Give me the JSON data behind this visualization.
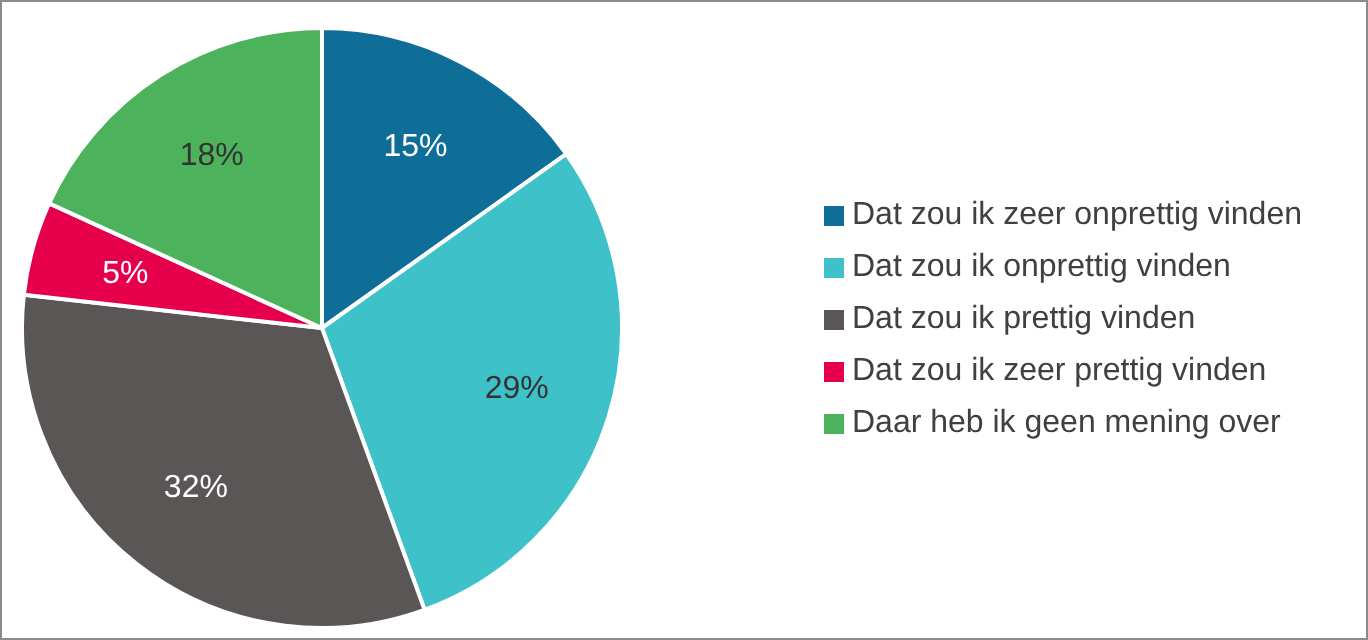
{
  "chart_data": {
    "type": "pie",
    "categories": [
      "Dat zou ik zeer onprettig vinden",
      "Dat zou ik onprettig vinden",
      "Dat zou ik prettig vinden",
      "Dat zou ik zeer prettig vinden",
      "Daar heb ik geen mening over"
    ],
    "values": [
      15,
      29,
      32,
      5,
      18
    ],
    "value_labels": [
      "15%",
      "29%",
      "32%",
      "5%",
      "18%"
    ],
    "colors": [
      "#0f6e98",
      "#3fc1c9",
      "#5a5656",
      "#e6004c",
      "#4cb35c"
    ],
    "legend": "right"
  }
}
